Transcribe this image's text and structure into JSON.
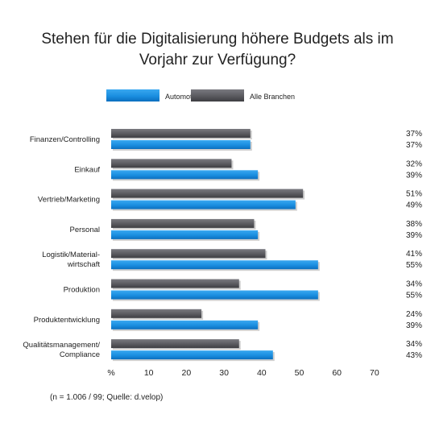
{
  "chart_data": {
    "type": "bar",
    "orientation": "horizontal",
    "title": "Stehen für die Digitalisierung höhere Budgets als im Vorjahr zur Verfügung?",
    "categories": [
      "Finanzen/Controlling",
      "Einkauf",
      "Vertrieb/Marketing",
      "Personal",
      "Logistik/Material-\nwirtschaft",
      "Produktion",
      "Produktentwicklung",
      "Qualitätsmanagement/\nCompliance"
    ],
    "series": [
      {
        "name": "Alle Branchen",
        "color": "#5a5a5f",
        "values": [
          37,
          32,
          51,
          38,
          41,
          34,
          24,
          34
        ],
        "labels": [
          "37%",
          "32%",
          "51%",
          "38%",
          "41%",
          "34%",
          "24%",
          "34%"
        ]
      },
      {
        "name": "Automotive",
        "color": "#1a8ee0",
        "values": [
          37,
          39,
          49,
          39,
          55,
          55,
          39,
          43
        ],
        "labels": [
          "37%",
          "39%",
          "49%",
          "39%",
          "55%",
          "55%",
          "39%",
          "43%"
        ]
      }
    ],
    "xlim": [
      0,
      70
    ],
    "xticks": [
      0,
      10,
      20,
      30,
      40,
      50,
      60,
      70
    ],
    "xtick_labels": [
      "%",
      "10",
      "20",
      "30",
      "40",
      "50",
      "60",
      "70"
    ],
    "legend": "top-left",
    "legend_order": [
      "Automotive",
      "Alle Branchen"
    ],
    "grid": false
  },
  "source_note": "(n = 1.006 / 99; Quelle: d.velop)"
}
